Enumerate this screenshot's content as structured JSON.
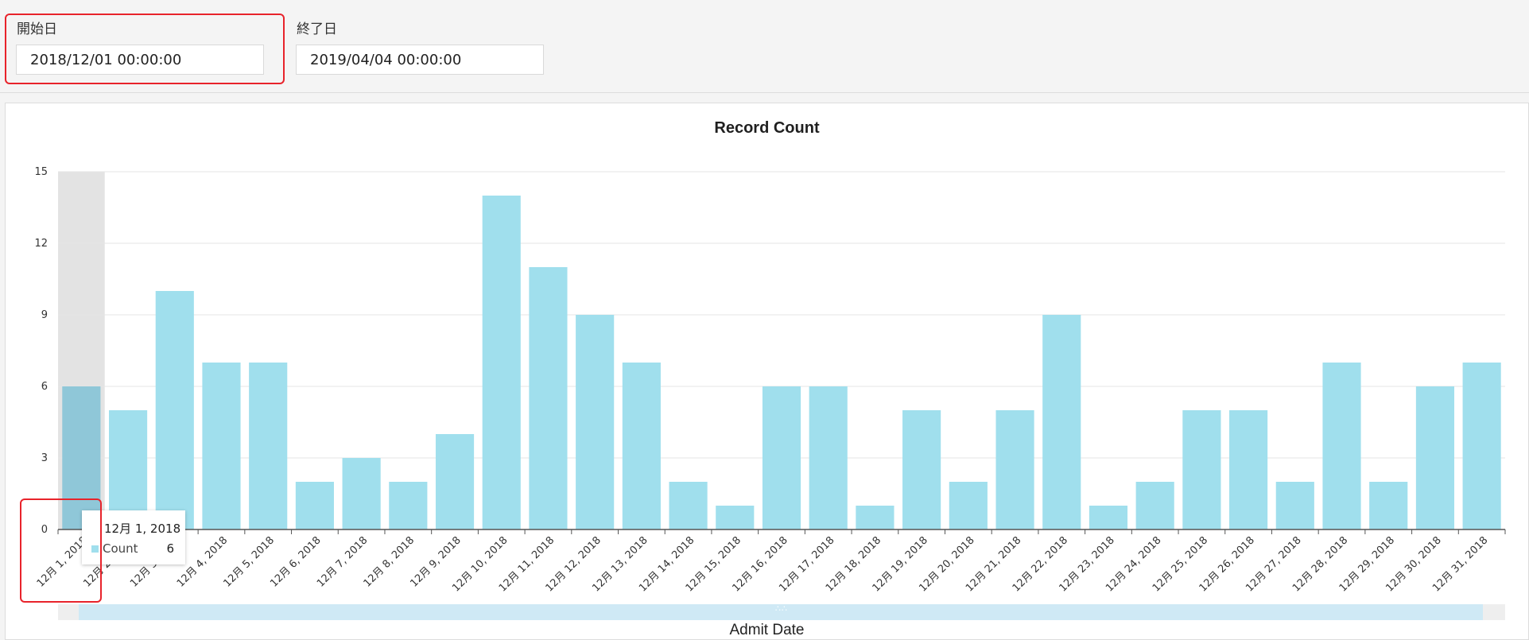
{
  "filters": {
    "start": {
      "label": "開始日",
      "value": "2018/12/01 00:00:00"
    },
    "end": {
      "label": "終了日",
      "value": "2019/04/04 00:00:00"
    }
  },
  "colors": {
    "bar": "#a0dfed",
    "bar_selected": "#8fc7d8",
    "highlight": "#e8232b"
  },
  "tooltip": {
    "title": "12月 1, 2018",
    "series": "Count",
    "value": "6"
  },
  "chart_data": {
    "type": "bar",
    "title": "Record Count",
    "xlabel": "Admit Date",
    "ylabel": "",
    "ylim": [
      0,
      15
    ],
    "yticks": [
      0,
      3,
      6,
      9,
      12,
      15
    ],
    "grid": true,
    "selected_index": 0,
    "categories": [
      "12月 1, 2018",
      "12月 2, 2018",
      "12月 3, 2018",
      "12月 4, 2018",
      "12月 5, 2018",
      "12月 6, 2018",
      "12月 7, 2018",
      "12月 8, 2018",
      "12月 9, 2018",
      "12月 10, 2018",
      "12月 11, 2018",
      "12月 12, 2018",
      "12月 13, 2018",
      "12月 14, 2018",
      "12月 15, 2018",
      "12月 16, 2018",
      "12月 17, 2018",
      "12月 18, 2018",
      "12月 19, 2018",
      "12月 20, 2018",
      "12月 21, 2018",
      "12月 22, 2018",
      "12月 23, 2018",
      "12月 24, 2018",
      "12月 25, 2018",
      "12月 26, 2018",
      "12月 27, 2018",
      "12月 28, 2018",
      "12月 29, 2018",
      "12月 30, 2018",
      "12月 31, 2018"
    ],
    "series": [
      {
        "name": "Count",
        "values": [
          6,
          5,
          10,
          7,
          7,
          2,
          3,
          2,
          4,
          14,
          11,
          9,
          7,
          2,
          1,
          6,
          6,
          1,
          5,
          2,
          5,
          9,
          1,
          2,
          5,
          5,
          2,
          7,
          2,
          6,
          7
        ]
      }
    ]
  }
}
